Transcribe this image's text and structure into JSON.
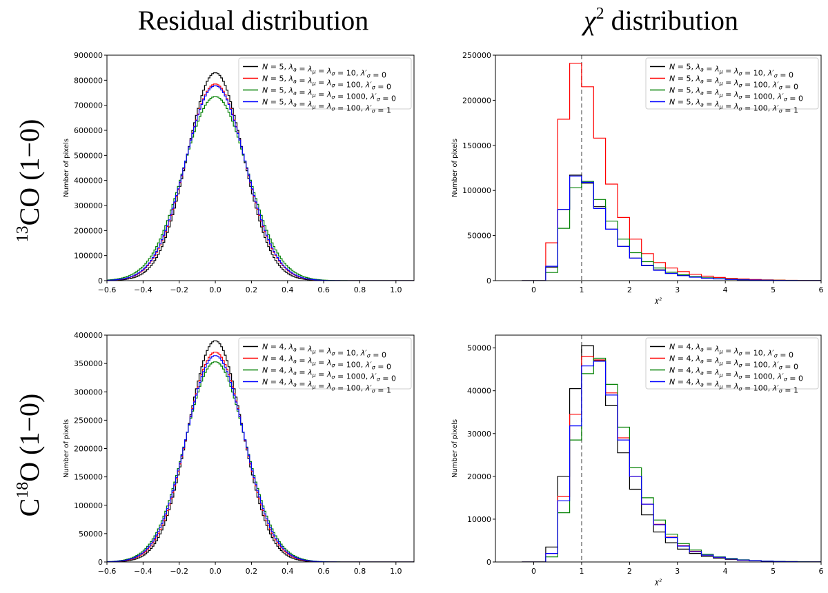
{
  "figure": {
    "col_titles": [
      "Residual distribution",
      "distribution"
    ],
    "col_title_symbol": "χ",
    "col_title_sup": "2",
    "row_labels": [
      {
        "sup": "13",
        "pre": "",
        "text": "CO (1−0)"
      },
      {
        "sup": "18",
        "pre": "C",
        "text": "O (1−0)"
      }
    ]
  },
  "chart_data": [
    {
      "type": "histogram",
      "panel": "13CO residual",
      "xlabel": "",
      "ylabel": "Number of pixels",
      "xlim": [
        -0.6,
        1.1
      ],
      "ylim": [
        0,
        900000
      ],
      "xticks": [
        -0.6,
        -0.4,
        -0.2,
        0.0,
        0.2,
        0.4,
        0.6,
        0.8,
        1.0
      ],
      "xtick_labels": [
        "−0.6",
        "−0.4",
        "−0.2",
        "0.0",
        "0.2",
        "0.4",
        "0.6",
        "0.8",
        "1.0"
      ],
      "yticks": [
        0,
        100000,
        200000,
        300000,
        400000,
        500000,
        600000,
        700000,
        800000,
        900000
      ],
      "ytick_labels": [
        "0",
        "100000",
        "200000",
        "300000",
        "400000",
        "500000",
        "600000",
        "700000",
        "800000",
        "900000"
      ],
      "legend_loc": "upper right",
      "series": [
        {
          "name": "N = 5, λa = λμ = λσ = 10, λ′σ = 0",
          "color": "#000000",
          "peak": 830000,
          "center": 0.0,
          "sigma": 0.155
        },
        {
          "name": "N = 5, λa = λμ = λσ = 100, λ′σ = 0",
          "color": "#ff0000",
          "peak": 785000,
          "center": 0.0,
          "sigma": 0.165
        },
        {
          "name": "N = 5, λa = λμ = λσ = 1000, λ′σ = 0",
          "color": "#008000",
          "peak": 735000,
          "center": 0.0,
          "sigma": 0.177
        },
        {
          "name": "N = 5, λa = λμ = λσ = 100, λ′σ = 1",
          "color": "#0000ff",
          "peak": 778000,
          "center": 0.0,
          "sigma": 0.167
        }
      ]
    },
    {
      "type": "histogram",
      "panel": "13CO chi2",
      "xlabel": "χ²",
      "ylabel": "Number of pixels",
      "xlim": [
        -0.8,
        6
      ],
      "ylim": [
        0,
        250000
      ],
      "xticks": [
        0,
        1,
        2,
        3,
        4,
        5,
        6
      ],
      "xtick_labels": [
        "0",
        "1",
        "2",
        "3",
        "4",
        "5",
        "6"
      ],
      "yticks": [
        0,
        50000,
        100000,
        150000,
        200000,
        250000
      ],
      "ytick_labels": [
        "0",
        "50000",
        "100000",
        "150000",
        "200000",
        "250000"
      ],
      "vline": 1,
      "legend_loc": "upper right",
      "bin_edges": [
        -0.25,
        0.0,
        0.25,
        0.5,
        0.75,
        1.0,
        1.25,
        1.5,
        1.75,
        2.0,
        2.25,
        2.5,
        2.75,
        3.0,
        3.25,
        3.5,
        3.75,
        4.0,
        4.25,
        4.5,
        4.75,
        5.0,
        5.25,
        5.5,
        5.75,
        6.0
      ],
      "series": [
        {
          "name": "N = 5, λa = λμ = λσ = 10, λ′σ = 0",
          "color": "#000000",
          "values": [
            0,
            0,
            15000,
            79000,
            117000,
            108000,
            82000,
            57000,
            38000,
            25000,
            17000,
            12000,
            8000,
            6000,
            4000,
            3000,
            2000,
            1500,
            1000,
            800,
            600,
            400,
            300,
            200,
            100
          ]
        },
        {
          "name": "N = 5, λa = λμ = λσ = 100, λ′σ = 0",
          "color": "#ff0000",
          "values": [
            0,
            0,
            42000,
            179000,
            241000,
            215000,
            158000,
            107000,
            70000,
            46000,
            30000,
            20000,
            14000,
            10000,
            7000,
            5000,
            3500,
            2500,
            1800,
            1300,
            900,
            600,
            400,
            300,
            200
          ]
        },
        {
          "name": "N = 5, λa = λμ = λσ = 1000, λ′σ = 0",
          "color": "#008000",
          "values": [
            0,
            0,
            9000,
            58000,
            103000,
            110000,
            90000,
            66000,
            46000,
            31000,
            21000,
            14000,
            9500,
            6500,
            4500,
            3200,
            2200,
            1500,
            1000,
            700,
            500,
            350,
            250,
            150,
            100
          ]
        },
        {
          "name": "N = 5, λa = λμ = λσ = 100, λ′σ = 1",
          "color": "#0000ff",
          "values": [
            0,
            0,
            16000,
            79000,
            116000,
            109000,
            80000,
            57000,
            38000,
            25000,
            16500,
            11500,
            8000,
            5500,
            3800,
            2700,
            1900,
            1300,
            900,
            650,
            450,
            300,
            200,
            150,
            100
          ]
        }
      ]
    },
    {
      "type": "histogram",
      "panel": "C18O residual",
      "xlabel": "",
      "ylabel": "Number of pixels",
      "xlim": [
        -0.6,
        1.1
      ],
      "ylim": [
        0,
        400000
      ],
      "xticks": [
        -0.6,
        -0.4,
        -0.2,
        0.0,
        0.2,
        0.4,
        0.6,
        0.8,
        1.0
      ],
      "xtick_labels": [
        "−0.6",
        "−0.4",
        "−0.2",
        "0.0",
        "0.2",
        "0.4",
        "0.6",
        "0.8",
        "1.0"
      ],
      "yticks": [
        0,
        50000,
        100000,
        150000,
        200000,
        250000,
        300000,
        350000,
        400000
      ],
      "ytick_labels": [
        "0",
        "50000",
        "100000",
        "150000",
        "200000",
        "250000",
        "300000",
        "350000",
        "400000"
      ],
      "legend_loc": "upper right",
      "series": [
        {
          "name": "N = 4, λa = λμ = λσ = 10, λ′σ = 0",
          "color": "#000000",
          "peak": 390000,
          "center": 0.0,
          "sigma": 0.15
        },
        {
          "name": "N = 4, λa = λμ = λσ = 100, λ′σ = 0",
          "color": "#ff0000",
          "peak": 370000,
          "center": 0.0,
          "sigma": 0.158
        },
        {
          "name": "N = 4, λa = λμ = λσ = 1000, λ′σ = 0",
          "color": "#008000",
          "peak": 353000,
          "center": 0.0,
          "sigma": 0.166
        },
        {
          "name": "N = 4, λa = λμ = λσ = 100, λ′σ = 1",
          "color": "#0000ff",
          "peak": 364000,
          "center": 0.0,
          "sigma": 0.161
        }
      ]
    },
    {
      "type": "histogram",
      "panel": "C18O chi2",
      "xlabel": "χ²",
      "ylabel": "Number of pixels",
      "xlim": [
        -0.8,
        6
      ],
      "ylim": [
        0,
        53000
      ],
      "xticks": [
        0,
        1,
        2,
        3,
        4,
        5,
        6
      ],
      "xtick_labels": [
        "0",
        "1",
        "2",
        "3",
        "4",
        "5",
        "6"
      ],
      "yticks": [
        0,
        10000,
        20000,
        30000,
        40000,
        50000
      ],
      "ytick_labels": [
        "0",
        "10000",
        "20000",
        "30000",
        "40000",
        "50000"
      ],
      "vline": 1,
      "legend_loc": "upper right",
      "bin_edges": [
        -0.25,
        0.0,
        0.25,
        0.5,
        0.75,
        1.0,
        1.25,
        1.5,
        1.75,
        2.0,
        2.25,
        2.5,
        2.75,
        3.0,
        3.25,
        3.5,
        3.75,
        4.0,
        4.25,
        4.5,
        4.75,
        5.0,
        5.25,
        5.5,
        5.75,
        6.0
      ],
      "series": [
        {
          "name": "N = 4, λa = λμ = λσ = 10, λ′σ = 0",
          "color": "#000000",
          "values": [
            0,
            0,
            3500,
            20000,
            40500,
            50500,
            47000,
            36500,
            25500,
            17000,
            11000,
            7000,
            4500,
            3000,
            2000,
            1300,
            900,
            600,
            400,
            250,
            150,
            100,
            60,
            30,
            10
          ]
        },
        {
          "name": "N = 4, λa = λμ = λσ = 100, λ′σ = 0",
          "color": "#ff0000",
          "values": [
            0,
            0,
            2000,
            15300,
            34500,
            48000,
            47200,
            39500,
            29000,
            20000,
            13500,
            8800,
            5800,
            3800,
            2500,
            1600,
            1100,
            700,
            450,
            300,
            200,
            130,
            80,
            40,
            20
          ]
        },
        {
          "name": "N = 4, λa = λμ = λσ = 1000, λ′σ = 0",
          "color": "#008000",
          "values": [
            0,
            0,
            1200,
            11500,
            28500,
            44000,
            47600,
            41500,
            31500,
            22000,
            15000,
            9800,
            6500,
            4300,
            2800,
            1800,
            1200,
            800,
            500,
            330,
            220,
            140,
            90,
            50,
            20
          ]
        },
        {
          "name": "N = 4, λa = λμ = λσ = 100, λ′σ = 1",
          "color": "#0000ff",
          "values": [
            0,
            0,
            2000,
            14300,
            31800,
            45800,
            46900,
            39000,
            28500,
            20000,
            13500,
            8700,
            5700,
            3700,
            2400,
            1600,
            1100,
            700,
            450,
            300,
            190,
            120,
            70,
            40,
            20
          ]
        }
      ]
    }
  ]
}
